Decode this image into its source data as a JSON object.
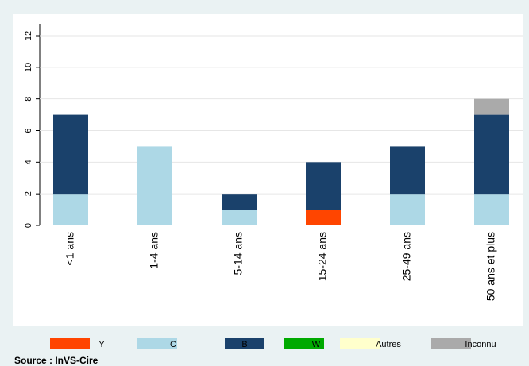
{
  "chart_data": {
    "type": "stacked_bar",
    "categories": [
      "<1 ans",
      "1-4 ans",
      "5-14 ans",
      "15-24 ans",
      "25-49 ans",
      "50 ans et plus"
    ],
    "series": [
      {
        "name": "Y",
        "color": "#ff4500",
        "values": [
          0,
          0,
          0,
          1,
          0,
          0
        ]
      },
      {
        "name": "C",
        "color": "#add8e6",
        "values": [
          2,
          5,
          1,
          0,
          2,
          2
        ]
      },
      {
        "name": "B",
        "color": "#1a416b",
        "values": [
          5,
          0,
          1,
          3,
          3,
          5
        ]
      },
      {
        "name": "W",
        "color": "#00aa00",
        "values": [
          0,
          0,
          0,
          0,
          0,
          0
        ]
      },
      {
        "name": "Autres",
        "color": "#ffffcc",
        "values": [
          0,
          0,
          0,
          0,
          0,
          0
        ]
      },
      {
        "name": "Inconnu",
        "color": "#aaaaaa",
        "values": [
          0,
          0,
          0,
          0,
          0,
          1
        ]
      }
    ],
    "ylim": [
      0,
      12
    ],
    "yticks": [
      0,
      2,
      4,
      6,
      8,
      10,
      12
    ],
    "grid": true,
    "legend": "bottom",
    "source": "Source : InVS-Cire"
  }
}
